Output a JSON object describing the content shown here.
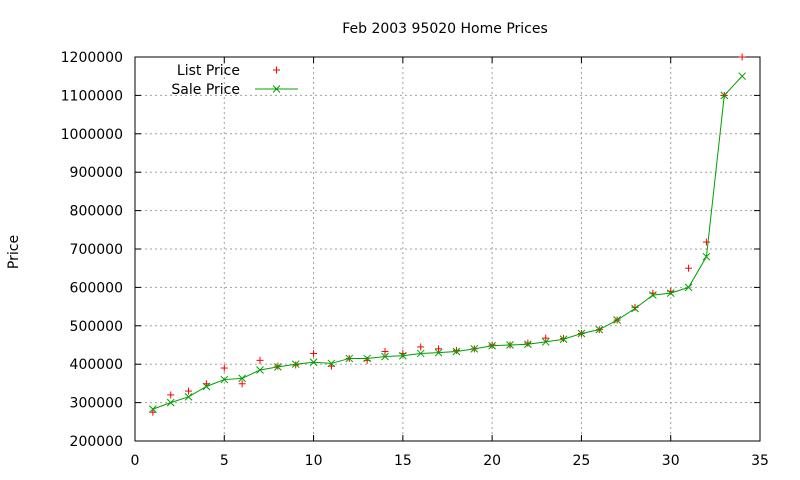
{
  "chart_data": {
    "type": "line",
    "title": "Feb 2003 95020 Home Prices",
    "xlabel": "",
    "ylabel": "Price",
    "xlim": [
      0,
      35
    ],
    "ylim": [
      200000,
      1200000
    ],
    "xticks": [
      0,
      5,
      10,
      15,
      20,
      25,
      30,
      35
    ],
    "yticks": [
      200000,
      300000,
      400000,
      500000,
      600000,
      700000,
      800000,
      900000,
      1000000,
      1100000,
      1200000
    ],
    "grid": true,
    "legend_position": "top-left",
    "series": [
      {
        "name": "List Price",
        "style": "points",
        "marker": "plus",
        "color": "#ff0000",
        "x": [
          1,
          2,
          3,
          4,
          5,
          6,
          7,
          8,
          9,
          10,
          11,
          12,
          13,
          14,
          15,
          16,
          17,
          18,
          19,
          20,
          21,
          22,
          23,
          24,
          25,
          26,
          27,
          28,
          29,
          30,
          31,
          32,
          33,
          34
        ],
        "y": [
          275000,
          320000,
          330000,
          349000,
          390000,
          349000,
          410000,
          395000,
          398000,
          428000,
          395000,
          415000,
          410000,
          433000,
          428000,
          445000,
          440000,
          436000,
          440000,
          450000,
          450000,
          455000,
          468000,
          467000,
          480000,
          490000,
          515000,
          548000,
          585000,
          590000,
          650000,
          718000,
          1100000,
          1200000
        ]
      },
      {
        "name": "Sale Price",
        "style": "linespoints",
        "marker": "x",
        "color": "#00a000",
        "x": [
          1,
          2,
          3,
          4,
          5,
          6,
          7,
          8,
          9,
          10,
          11,
          12,
          13,
          14,
          15,
          16,
          17,
          18,
          19,
          20,
          21,
          22,
          23,
          24,
          25,
          26,
          27,
          28,
          29,
          30,
          31,
          32,
          33,
          34
        ],
        "y": [
          283000,
          300000,
          315000,
          342000,
          360000,
          363000,
          385000,
          393000,
          400000,
          405000,
          402000,
          415000,
          415000,
          420000,
          422000,
          428000,
          430000,
          433000,
          440000,
          448000,
          450000,
          452000,
          458000,
          465000,
          480000,
          490000,
          515000,
          545000,
          580000,
          585000,
          600000,
          680000,
          1100000,
          1150000
        ]
      }
    ]
  }
}
